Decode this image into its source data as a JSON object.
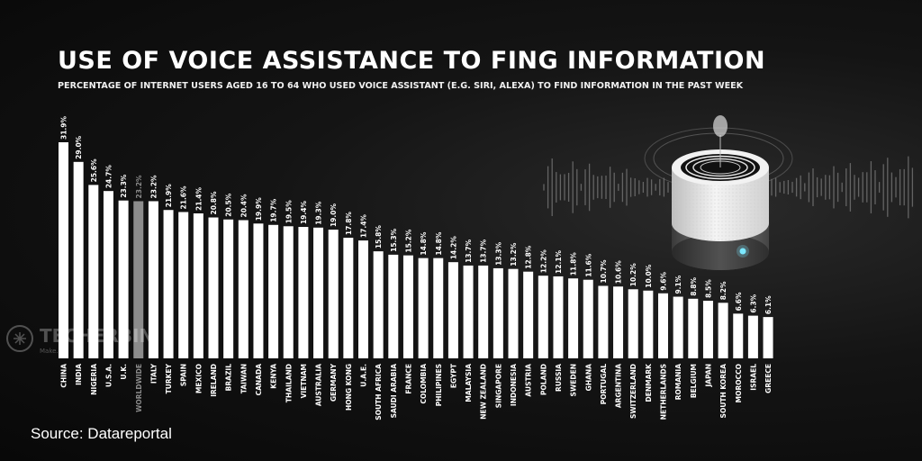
{
  "title": "USE OF VOICE ASSISTANCE TO FING INFORMATION",
  "subtitle": "PERCENTAGE OF INTERNET USERS AGED 16 TO 64 WHO USED VOICE ASSISTANT (E.G. SIRI, ALEXA) TO FIND INFORMATION IN THE PAST WEEK",
  "source": "Source: Datareportal",
  "watermark": {
    "brand": "TECHERBIN",
    "tagline": "Make..."
  },
  "colors": {
    "bar": "#ffffff",
    "highlight_bar": "#8c8c8c",
    "background": "#0d0d0d",
    "text": "#ffffff"
  },
  "illustration": {
    "icon": "smart-speaker-icon",
    "decor": "sound-wave"
  },
  "chart_data": {
    "type": "bar",
    "categories": [
      "CHINA",
      "INDIA",
      "NIGERIA",
      "U.S.A.",
      "U.K.",
      "WORLDWIDE",
      "ITALY",
      "TURKEY",
      "SPAIN",
      "MEXICO",
      "IRELAND",
      "BRAZIL",
      "TAIWAN",
      "CANADA",
      "KENYA",
      "THAILAND",
      "VIETNAM",
      "AUSTRALIA",
      "GERMANY",
      "HONG KONG",
      "U.A.E.",
      "SOUTH AFRICA",
      "SAUDI ARABIA",
      "FRANCE",
      "COLOMBIA",
      "PHILIPINES",
      "EGYPT",
      "MALAYSIA",
      "NEW ZEALAND",
      "SINGAPORE",
      "INDONESIA",
      "AUSTRIA",
      "POLAND",
      "RUSSIA",
      "SWEDEN",
      "GHANA",
      "PORTUGAL",
      "ARGENTINA",
      "SWITZERLAND",
      "DENMARK",
      "NETHERLANDS",
      "ROMANIA",
      "BELGIUM",
      "JAPAN",
      "SOUTH KOREA",
      "MOROCCO",
      "ISRAEL",
      "GREECE"
    ],
    "values": [
      31.9,
      29.0,
      25.6,
      24.7,
      23.3,
      23.2,
      23.2,
      21.9,
      21.6,
      21.4,
      20.8,
      20.5,
      20.4,
      19.9,
      19.7,
      19.5,
      19.4,
      19.3,
      19.0,
      17.8,
      17.4,
      15.8,
      15.3,
      15.2,
      14.8,
      14.8,
      14.2,
      13.7,
      13.7,
      13.3,
      13.2,
      12.8,
      12.2,
      12.1,
      11.8,
      11.6,
      10.7,
      10.6,
      10.2,
      10.0,
      9.6,
      9.1,
      8.8,
      8.5,
      8.2,
      6.6,
      6.3,
      6.1
    ],
    "value_labels": [
      "31.9%",
      "29.0%",
      "25.6%",
      "24.7%",
      "23.3%",
      "23.2%",
      "23.2%",
      "21.9%",
      "21.6%",
      "21.4%",
      "20.8%",
      "20.5%",
      "20.4%",
      "19.9%",
      "19.7%",
      "19.5%",
      "19.4%",
      "19.3%",
      "19.0%",
      "17.8%",
      "17.4%",
      "15.8%",
      "15.3%",
      "15.2%",
      "14.8%",
      "14.8%",
      "14.2%",
      "13.7%",
      "13.7%",
      "13.3%",
      "13.2%",
      "12.8%",
      "12.2%",
      "12.1%",
      "11.8%",
      "11.6%",
      "10.7%",
      "10.6%",
      "10.2%",
      "10.0%",
      "9.6%",
      "9.1%",
      "8.8%",
      "8.5%",
      "8.2%",
      "6.6%",
      "6.3%",
      "6.1%"
    ],
    "highlight_category": "WORLDWIDE",
    "ylim": [
      0,
      31.9
    ],
    "grid": false,
    "legend": "none",
    "xlabel": "",
    "ylabel": ""
  }
}
